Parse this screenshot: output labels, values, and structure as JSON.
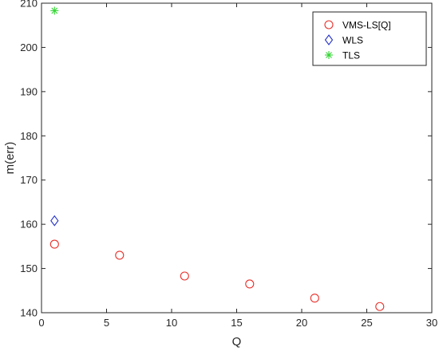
{
  "chart_data": {
    "type": "scatter",
    "title": "",
    "xlabel": "Q",
    "ylabel": "m(err)",
    "xlim": [
      0,
      30
    ],
    "ylim": [
      140,
      210
    ],
    "xticks": [
      0,
      5,
      10,
      15,
      20,
      25,
      30
    ],
    "yticks": [
      140,
      150,
      160,
      170,
      180,
      190,
      200,
      210
    ],
    "grid": false,
    "legend_position": "top-right",
    "series": [
      {
        "name": "VMS-LS[Q]",
        "marker": "circle",
        "color": "#e8312b",
        "points": [
          {
            "x": 1,
            "y": 155.5
          },
          {
            "x": 6,
            "y": 153.0
          },
          {
            "x": 11,
            "y": 148.3
          },
          {
            "x": 16,
            "y": 146.5
          },
          {
            "x": 21,
            "y": 143.3
          },
          {
            "x": 26,
            "y": 141.4
          }
        ]
      },
      {
        "name": "WLS",
        "marker": "diamond",
        "color": "#2432c8",
        "points": [
          {
            "x": 1,
            "y": 160.8
          }
        ]
      },
      {
        "name": "TLS",
        "marker": "asterisk",
        "color": "#33d633",
        "points": [
          {
            "x": 1,
            "y": 208.3
          }
        ]
      }
    ]
  }
}
